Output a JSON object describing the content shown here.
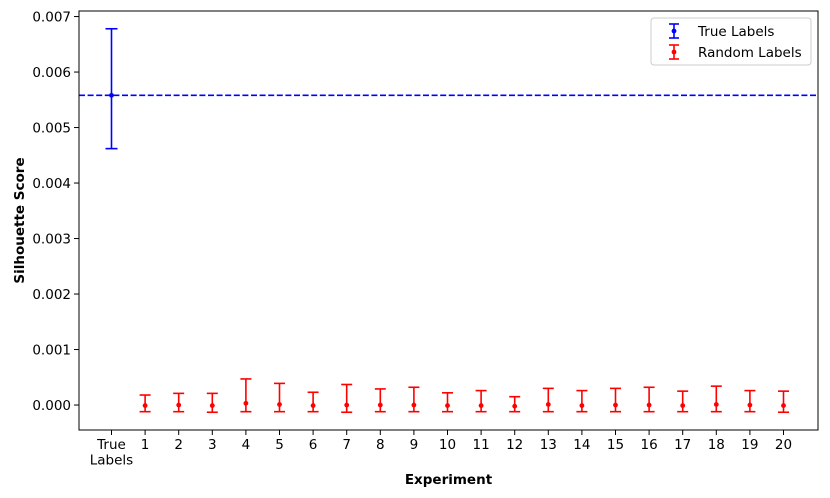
{
  "chart_data": {
    "type": "scatter",
    "title": "",
    "xlabel": "Experiment",
    "ylabel": "Silhouette Score",
    "x_categories": [
      "True\nLabels",
      "1",
      "2",
      "3",
      "4",
      "5",
      "6",
      "7",
      "8",
      "9",
      "10",
      "11",
      "12",
      "13",
      "14",
      "15",
      "16",
      "17",
      "18",
      "19",
      "20"
    ],
    "ylim": [
      -0.00045,
      0.0071
    ],
    "yticks": [
      0.0,
      0.001,
      0.002,
      0.003,
      0.004,
      0.005,
      0.006,
      0.007
    ],
    "ytick_labels": [
      "0.000",
      "0.001",
      "0.002",
      "0.003",
      "0.004",
      "0.005",
      "0.006",
      "0.007"
    ],
    "grid": false,
    "legend_position": "top-right",
    "reference_line": {
      "y": 0.00558,
      "style": "dashed",
      "color": "#0000ff"
    },
    "series": [
      {
        "name": "True Labels",
        "color": "#0000ff",
        "points": [
          {
            "x": "True Labels",
            "y": 0.00558,
            "low": 0.00462,
            "high": 0.00678
          }
        ]
      },
      {
        "name": "Random Labels",
        "color": "#ff0000",
        "points": [
          {
            "x": "1",
            "y": -1e-05,
            "low": -0.00012,
            "high": 0.00018
          },
          {
            "x": "2",
            "y": 0.0,
            "low": -0.00012,
            "high": 0.00021
          },
          {
            "x": "3",
            "y": -1e-05,
            "low": -0.00013,
            "high": 0.00021
          },
          {
            "x": "4",
            "y": 3e-05,
            "low": -0.00012,
            "high": 0.00047
          },
          {
            "x": "5",
            "y": 1e-05,
            "low": -0.00012,
            "high": 0.00039
          },
          {
            "x": "6",
            "y": -1e-05,
            "low": -0.00012,
            "high": 0.00023
          },
          {
            "x": "7",
            "y": 0.0,
            "low": -0.00013,
            "high": 0.00037
          },
          {
            "x": "8",
            "y": 0.0,
            "low": -0.00012,
            "high": 0.00029
          },
          {
            "x": "9",
            "y": 0.0,
            "low": -0.00012,
            "high": 0.00032
          },
          {
            "x": "10",
            "y": -1e-05,
            "low": -0.00012,
            "high": 0.00022
          },
          {
            "x": "11",
            "y": -1e-05,
            "low": -0.00012,
            "high": 0.00026
          },
          {
            "x": "12",
            "y": -2e-05,
            "low": -0.00012,
            "high": 0.00015
          },
          {
            "x": "13",
            "y": 1e-05,
            "low": -0.00012,
            "high": 0.0003
          },
          {
            "x": "14",
            "y": -1e-05,
            "low": -0.00012,
            "high": 0.00026
          },
          {
            "x": "15",
            "y": 0.0,
            "low": -0.00012,
            "high": 0.0003
          },
          {
            "x": "16",
            "y": 0.0,
            "low": -0.00012,
            "high": 0.00032
          },
          {
            "x": "17",
            "y": -1e-05,
            "low": -0.00012,
            "high": 0.00025
          },
          {
            "x": "18",
            "y": 1e-05,
            "low": -0.00012,
            "high": 0.00034
          },
          {
            "x": "19",
            "y": 0.0,
            "low": -0.00012,
            "high": 0.00026
          },
          {
            "x": "20",
            "y": -1e-05,
            "low": -0.00013,
            "high": 0.00025
          }
        ]
      }
    ]
  }
}
